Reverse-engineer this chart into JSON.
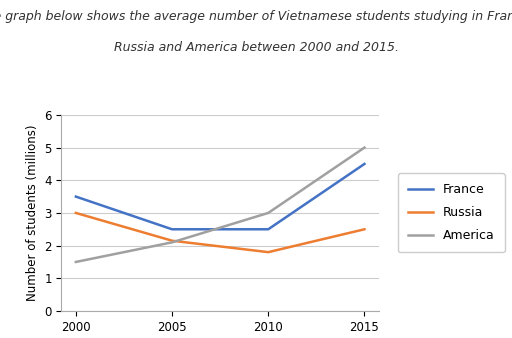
{
  "title_line1": "The graph below shows the average number of Vietnamese students studying in France,",
  "title_line2": "Russia and America between 2000 and 2015.",
  "years": [
    2000,
    2005,
    2010,
    2015
  ],
  "france": [
    3.5,
    2.5,
    2.5,
    4.5
  ],
  "russia": [
    3.0,
    2.15,
    1.8,
    2.5
  ],
  "america": [
    1.5,
    2.1,
    3.0,
    5.0
  ],
  "france_color": "#4472C4",
  "russia_color": "#ED7D31",
  "america_color": "#A0A0A0",
  "ylabel": "Number of students (millions)",
  "ylim": [
    0,
    6
  ],
  "yticks": [
    0,
    1,
    2,
    3,
    4,
    5,
    6
  ],
  "xticks": [
    2000,
    2005,
    2010,
    2015
  ],
  "legend_labels": [
    "France",
    "Russia",
    "America"
  ],
  "title_fontsize": 9,
  "axis_fontsize": 8.5,
  "tick_fontsize": 8.5,
  "legend_fontsize": 9,
  "background_color": "#ffffff",
  "linewidth": 1.8
}
